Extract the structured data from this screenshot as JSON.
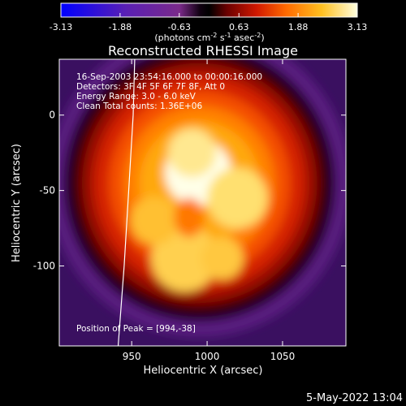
{
  "chart_data": {
    "type": "heatmap",
    "title": "Reconstructed RHESSI Image",
    "xlabel": "Heliocentric X (arcsec)",
    "ylabel": "Heliocentric Y (arcsec)",
    "xlim": [
      902,
      1092
    ],
    "ylim": [
      -153,
      37
    ],
    "x_ticks": [
      950,
      1000,
      1050
    ],
    "y_ticks": [
      0,
      -50,
      -100
    ],
    "colorbar": {
      "ticks": [
        "-3.13",
        "-1.88",
        "-0.63",
        "0.63",
        "1.88",
        "3.13"
      ],
      "range": [
        -3.13,
        3.13
      ],
      "unit_label": "(photons cm",
      "unit_exp1": "-2",
      "unit_mid": " s",
      "unit_exp2": "-1",
      "unit_tail": " asec",
      "unit_exp3": "-2",
      "unit_close": ")"
    },
    "annotations": {
      "time": "16-Sep-2003 23:54:16.000 to 00:00:16.000",
      "detectors": "Detectors: 3F 4F 5F 6F 7F 8F, Att 0",
      "energy": "Energy Range: 3.0 - 6.0 keV",
      "clean": "Clean     Total counts: 1.36E+06",
      "peak": "Position of Peak = [994,-38]"
    },
    "peak": [
      994,
      -38
    ],
    "limb_curve": [
      [
        952,
        37
      ],
      [
        951,
        0
      ],
      [
        948,
        -50
      ],
      [
        945,
        -100
      ],
      [
        941,
        -153
      ]
    ]
  },
  "footer": {
    "date": "5-May-2022 13:04"
  },
  "colors": {
    "background": "#000000",
    "text": "#ffffff",
    "colormap": [
      "#0000ff",
      "#5a20b4",
      "#8a2a8a",
      "#000000",
      "#7a0000",
      "#e02000",
      "#ff7000",
      "#ffb000",
      "#ffe030",
      "#ffffff"
    ]
  }
}
